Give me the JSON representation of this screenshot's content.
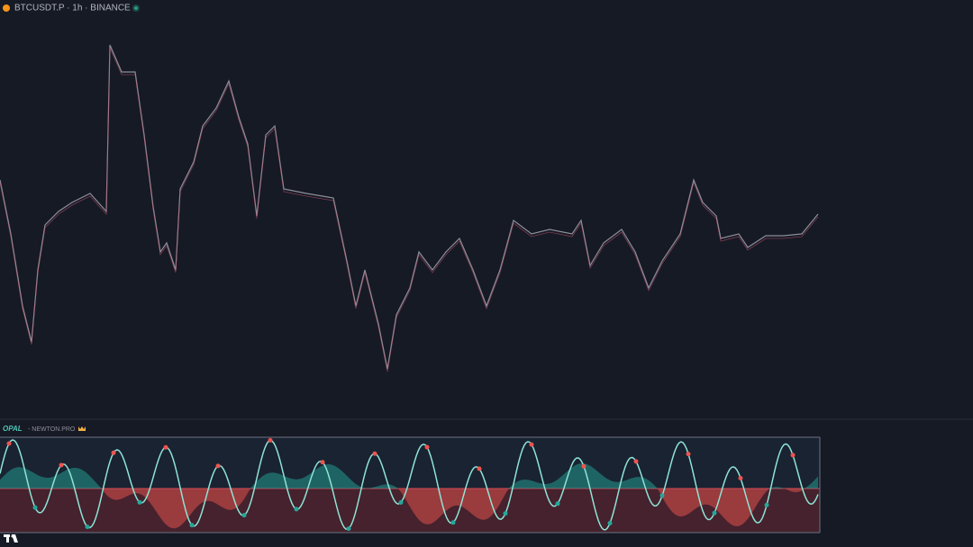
{
  "header": {
    "symbol": "BTCUSDT.P · 1h · BINANCE"
  },
  "indicator": {
    "name": "OPAL",
    "source": "- NEWTON.PRO"
  }
}
